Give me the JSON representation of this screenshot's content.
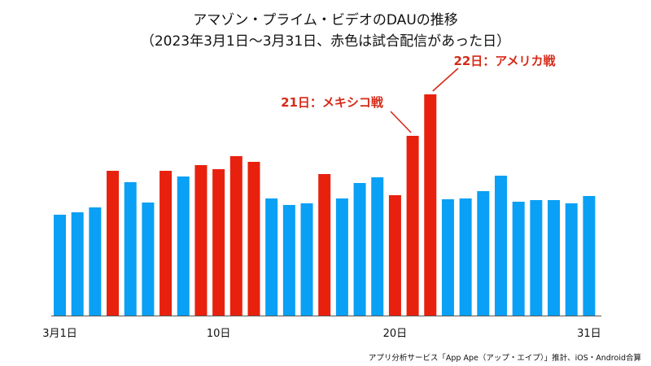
{
  "chart_data": {
    "type": "bar",
    "title": "アマゾン・プライム・ビデオのDAUの推移",
    "subtitle": "（2023年3月1日〜3月31日、赤色は試合配信があった日）",
    "xlabel": "",
    "ylabel": "",
    "ylim": [
      0,
      280
    ],
    "grid": false,
    "categories": [
      1,
      2,
      3,
      4,
      5,
      6,
      7,
      8,
      9,
      10,
      11,
      12,
      13,
      14,
      15,
      16,
      17,
      18,
      19,
      20,
      21,
      22,
      23,
      24,
      25,
      26,
      27,
      28,
      29,
      30,
      31
    ],
    "values": [
      124,
      127,
      133,
      178,
      164,
      139,
      178,
      171,
      185,
      180,
      196,
      189,
      144,
      136,
      138,
      174,
      144,
      163,
      170,
      148,
      221,
      272,
      143,
      144,
      153,
      172,
      140,
      142,
      142,
      138,
      147
    ],
    "match_day": [
      false,
      false,
      false,
      true,
      false,
      false,
      true,
      false,
      true,
      true,
      true,
      true,
      false,
      false,
      false,
      true,
      false,
      false,
      false,
      true,
      true,
      true,
      false,
      false,
      false,
      false,
      false,
      false,
      false,
      false,
      false
    ],
    "tick_labels": [
      {
        "day": 1,
        "label": "3月1日"
      },
      {
        "day": 10,
        "label": "10日"
      },
      {
        "day": 20,
        "label": "20日"
      },
      {
        "day": 31,
        "label": "31日"
      }
    ],
    "annotations": [
      {
        "day": 21,
        "text": "21日：メキシコ戦"
      },
      {
        "day": 22,
        "text": "22日：アメリカ戦"
      }
    ],
    "colors": {
      "normal": "#0aa0f5",
      "match": "#e8210e",
      "annotation": "#d62a18"
    },
    "note": "アプリ分析サービス「App Ape（アップ・エイプ）」推計、iOS・Android合算"
  }
}
